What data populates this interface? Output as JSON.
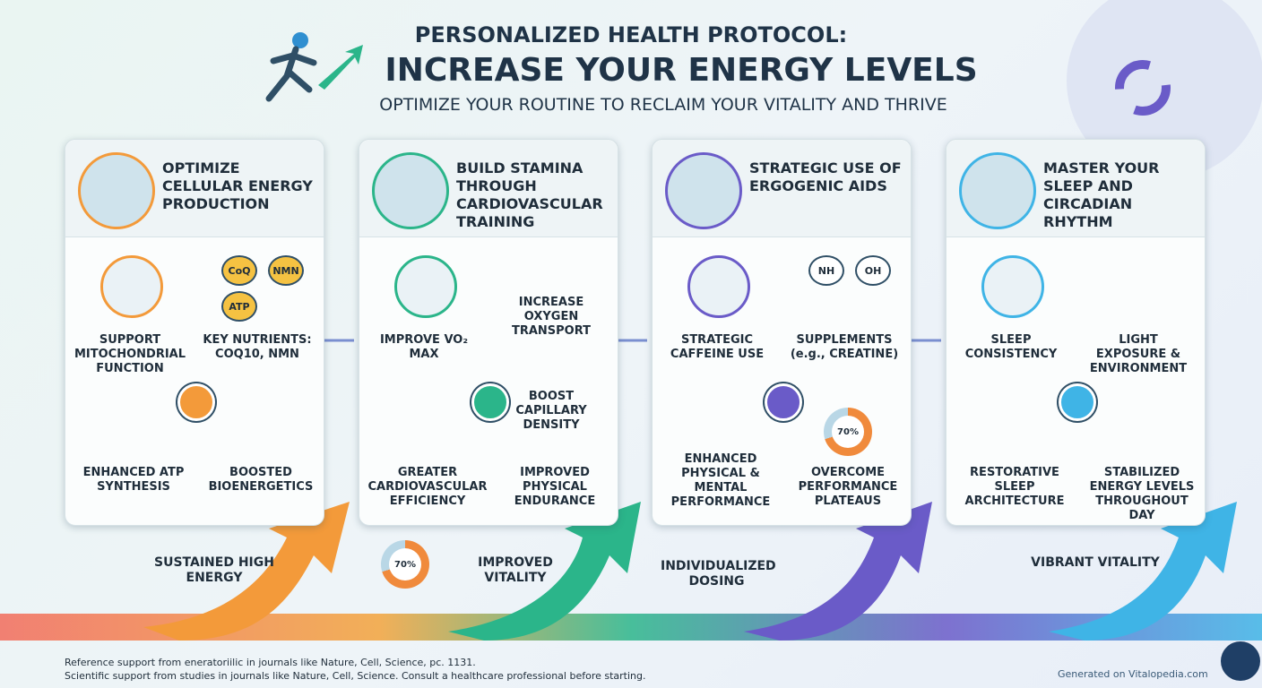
{
  "header": {
    "pretitle": "PERSONALIZED HEALTH PROTOCOL:",
    "title": "INCREASE YOUR ENERGY LEVELS",
    "subtitle": "OPTIMIZE YOUR ROUTINE TO RECLAIM YOUR VITALITY AND THRIVE"
  },
  "panels": [
    {
      "title": "OPTIMIZE CELLULAR ENERGY PRODUCTION",
      "icon_labels": [
        "CoQ",
        "NMN",
        "ATP"
      ],
      "items": [
        "SUPPORT MITOCHONDRIAL FUNCTION",
        "KEY NUTRIENTS: COQ10, NMN"
      ],
      "outcomes": [
        "ENHANCED ATP SYNTHESIS",
        "BOOSTED BIOENERGETICS"
      ],
      "result": "SUSTAINED HIGH ENERGY"
    },
    {
      "title": "BUILD STAMINA THROUGH CARDIOVASCULAR TRAINING",
      "items": [
        "IMPROVE VO₂ MAX",
        "INCREASE OXYGEN TRANSPORT",
        "BOOST CAPILLARY DENSITY"
      ],
      "outcomes": [
        "GREATER CARDIOVASCULAR EFFICIENCY",
        "IMPROVED PHYSICAL ENDURANCE"
      ],
      "badge": "70%",
      "result": "IMPROVED VITALITY"
    },
    {
      "title": "STRATEGIC USE OF ERGOGENIC AIDS",
      "icon_labels": [
        "NH",
        "OH"
      ],
      "items": [
        "STRATEGIC CAFFEINE USE",
        "SUPPLEMENTS (e.g., CREATINE)"
      ],
      "outcomes": [
        "ENHANCED PHYSICAL & MENTAL PERFORMANCE",
        "OVERCOME PERFORMANCE PLATEAUS"
      ],
      "badge": "70%",
      "result": "INDIVIDUALIZED DOSING"
    },
    {
      "title": "MASTER YOUR SLEEP AND CIRCADIAN RHYTHM",
      "items": [
        "SLEEP CONSISTENCY",
        "LIGHT EXPOSURE & ENVIRONMENT"
      ],
      "outcomes": [
        "RESTORATIVE SLEEP ARCHITECTURE",
        "STABILIZED ENERGY LEVELS THROUGHOUT DAY"
      ],
      "result": "VIBRANT VITALITY"
    }
  ],
  "footer": {
    "notes": [
      "Reference support from eneratoriilic in journals like Nature, Cell, Science, pc. 1131.",
      "Scientific support from studies in journals like Nature, Cell, Science. Consult a healthcare professional before starting."
    ],
    "credit": "Generated on Vitalopedia.com"
  }
}
